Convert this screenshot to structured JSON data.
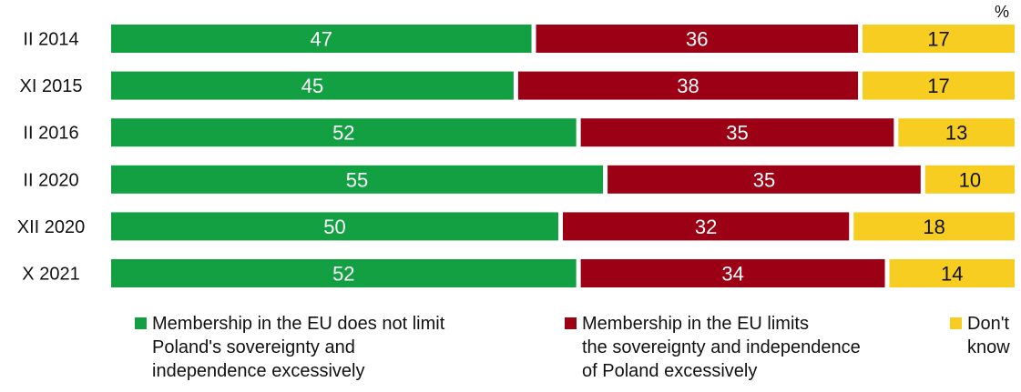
{
  "chart_data": {
    "type": "bar",
    "orientation": "horizontal",
    "stacked": true,
    "unit_label": "%",
    "categories": [
      "II 2014",
      "XI 2015",
      "II 2016",
      "II 2020",
      "XII 2020",
      "X 2021"
    ],
    "series": [
      {
        "name": "Membership in the EU does not limit\nPoland's sovereignty and\nindependence excessively",
        "values": [
          47,
          45,
          52,
          55,
          50,
          52
        ],
        "color": "#13a043"
      },
      {
        "name": "Membership in the EU limits\nthe sovereignty and independence\nof Poland excessively",
        "values": [
          36,
          38,
          35,
          35,
          32,
          34
        ],
        "color": "#9b0015"
      },
      {
        "name": "Don't\nknow",
        "values": [
          17,
          17,
          13,
          10,
          18,
          14
        ],
        "color": "#f6cd20"
      }
    ],
    "xlim": [
      0,
      100
    ],
    "grid": false,
    "legend_position": "bottom"
  }
}
